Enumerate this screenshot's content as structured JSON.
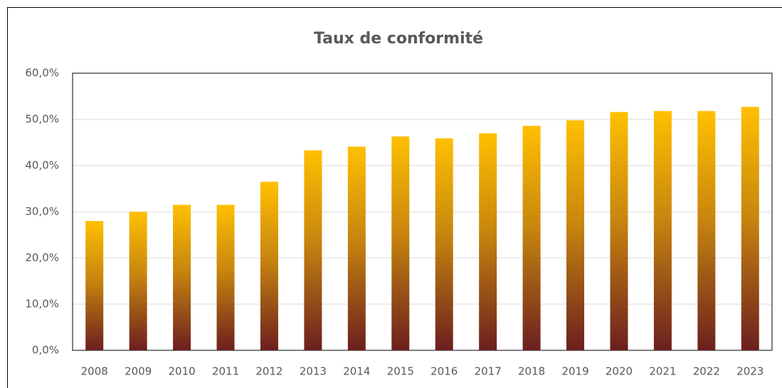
{
  "chart_data": {
    "type": "bar",
    "title": "Taux de conformité",
    "categories": [
      "2008",
      "2009",
      "2010",
      "2011",
      "2012",
      "2013",
      "2014",
      "2015",
      "2016",
      "2017",
      "2018",
      "2019",
      "2020",
      "2021",
      "2022",
      "2023"
    ],
    "values": [
      28.0,
      30.0,
      31.5,
      31.5,
      36.5,
      43.3,
      44.1,
      46.3,
      45.9,
      47.0,
      48.6,
      49.8,
      51.6,
      51.8,
      51.8,
      52.7
    ],
    "color": "#ffc000",
    "ylim": [
      0,
      60
    ],
    "yticks": [
      {
        "value": 0,
        "label": "0,0%"
      },
      {
        "value": 10,
        "label": "10,0%"
      },
      {
        "value": 20,
        "label": "20,0%"
      },
      {
        "value": 30,
        "label": "30,0%"
      },
      {
        "value": 40,
        "label": "40,0%"
      },
      {
        "value": 50,
        "label": "50,0%"
      },
      {
        "value": 60,
        "label": "60,0%"
      }
    ],
    "grid": true
  }
}
